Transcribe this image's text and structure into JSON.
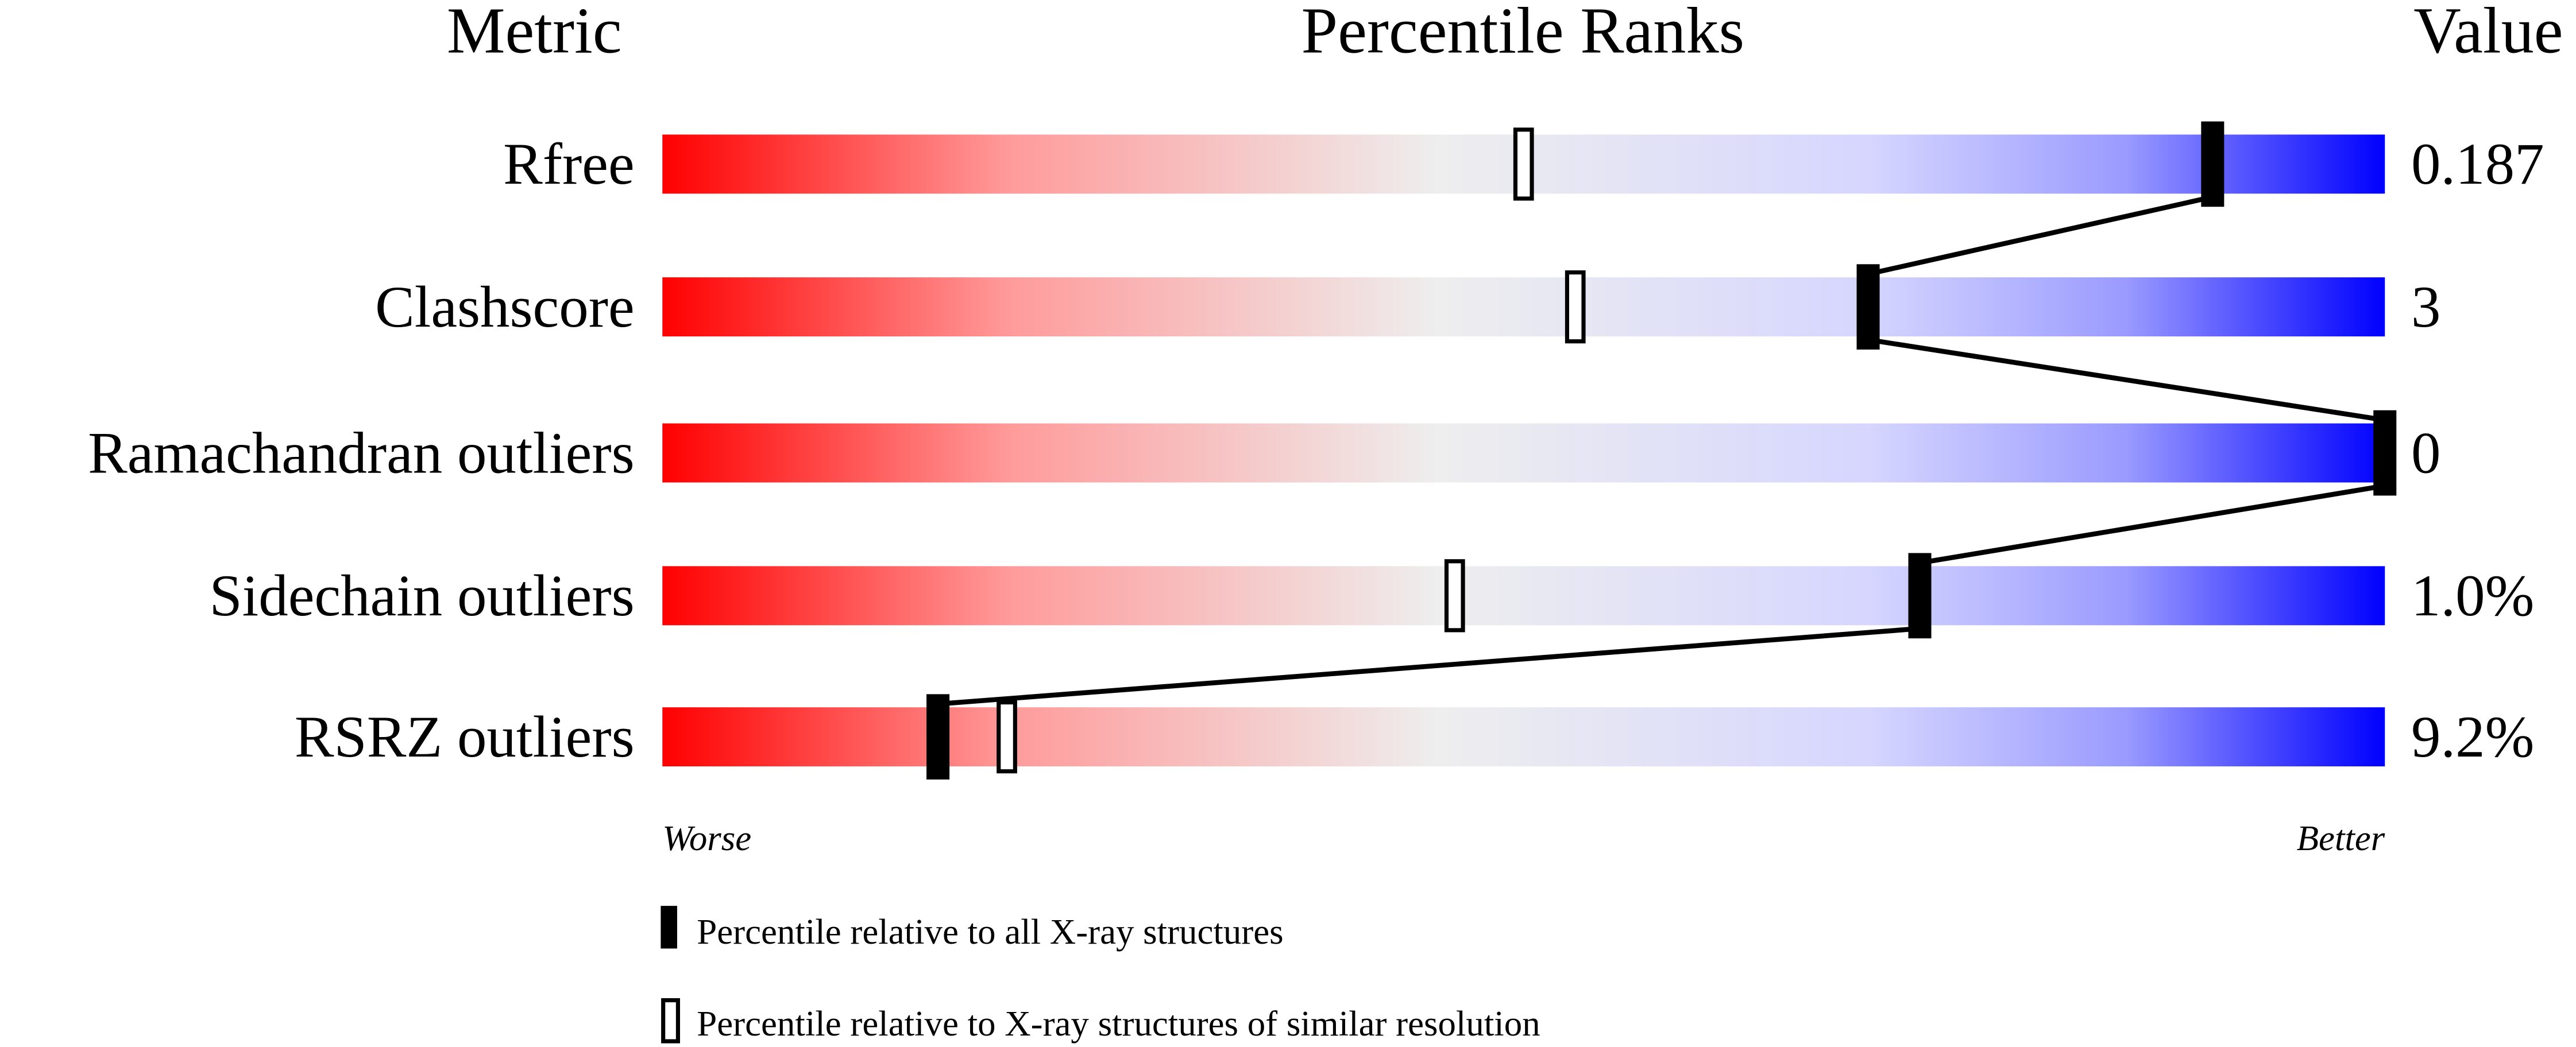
{
  "chart_data": {
    "type": "percentile-bar",
    "headers": {
      "metric": "Metric",
      "ranks": "Percentile Ranks",
      "value": "Value"
    },
    "xlim": [
      0,
      100
    ],
    "axis_labels": {
      "left": "Worse",
      "right": "Better"
    },
    "metrics": [
      {
        "name": "Rfree",
        "value": "0.187",
        "all_percentile": 90,
        "similar_percentile": 50
      },
      {
        "name": "Clashscore",
        "value": "3",
        "all_percentile": 70,
        "similar_percentile": 53
      },
      {
        "name": "Ramachandran outliers",
        "value": "0",
        "all_percentile": 100,
        "similar_percentile": 100
      },
      {
        "name": "Sidechain outliers",
        "value": "1.0%",
        "all_percentile": 73,
        "similar_percentile": 46
      },
      {
        "name": "RSRZ outliers",
        "value": "9.2%",
        "all_percentile": 16,
        "similar_percentile": 20
      }
    ],
    "legend": [
      {
        "marker": "filled",
        "label": "Percentile relative to all X-ray structures"
      },
      {
        "marker": "open",
        "label": "Percentile relative to X-ray structures of similar resolution"
      }
    ],
    "gradient_colors": [
      "#ff0000",
      "#eeeeee",
      "#dcdcff",
      "#0000ff"
    ]
  }
}
